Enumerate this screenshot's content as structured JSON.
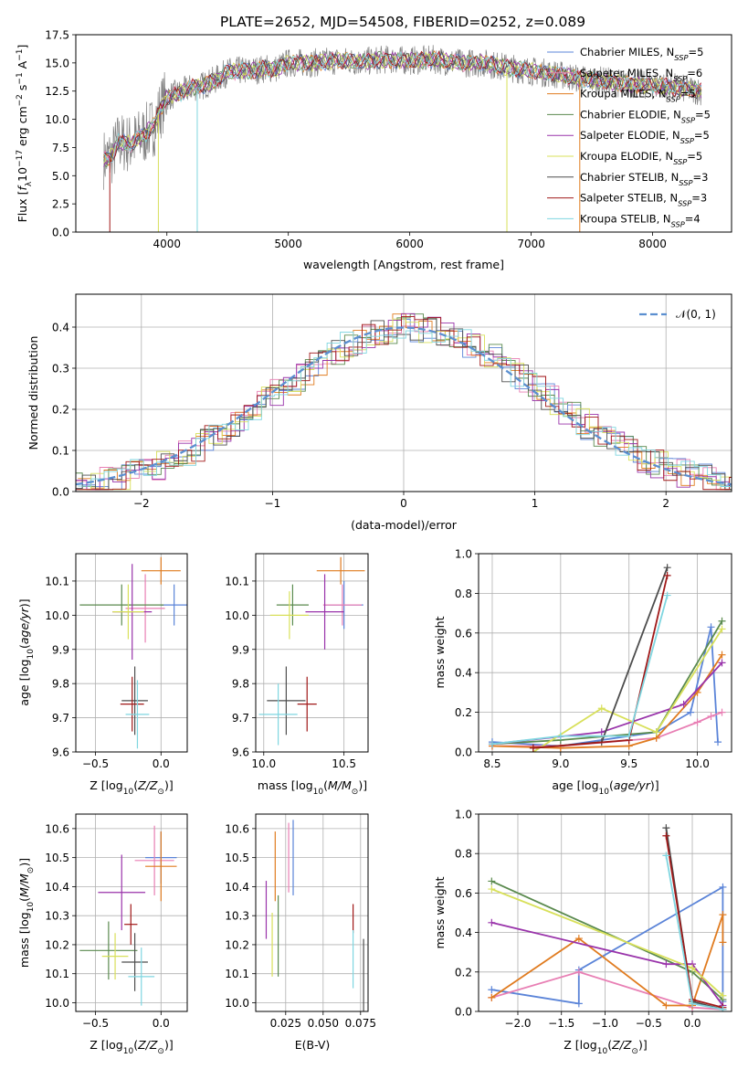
{
  "figure": {
    "title": "PLATE=2652, MJD=54508, FIBERID=0252, z=0.089",
    "colors": {
      "chabrier_miles": "#5b84d8",
      "salpeter_miles": "#e87fb4",
      "kroupa_miles": "#e07b1f",
      "chabrier_elodie": "#5a8a4e",
      "salpeter_elodie": "#9933aa",
      "kroupa_elodie": "#d8e05a",
      "chabrier_stelib": "#4d4d4d",
      "salpeter_stelib": "#a01818",
      "kroupa_stelib": "#7fd6e0",
      "spectrum": "#808080",
      "gaussian": "#5b8fd0"
    }
  },
  "chart_data": [
    {
      "type": "line",
      "id": "spectrum",
      "title": "PLATE=2652, MJD=54508, FIBERID=0252, z=0.089",
      "xlabel": "wavelength [Angstrom, rest frame]",
      "ylabel": "Flux [f_λ 10^-17 erg cm^-2 s^-1 A^-1]",
      "xlim": [
        3250,
        8650
      ],
      "ylim": [
        0,
        17.5
      ],
      "xticks": [
        4000,
        5000,
        6000,
        7000,
        8000
      ],
      "yticks": [
        0.0,
        2.5,
        5.0,
        7.5,
        10.0,
        12.5,
        15.0,
        17.5
      ],
      "legend_position": "top-right",
      "legend": [
        {
          "label": "Chabrier MILES, N_SSP=5",
          "color_key": "chabrier_miles"
        },
        {
          "label": "Salpeter MILES, N_SSP=6",
          "color_key": "salpeter_miles"
        },
        {
          "label": "Kroupa MILES, N_SSP=5",
          "color_key": "kroupa_miles"
        },
        {
          "label": "Chabrier ELODIE, N_SSP=5",
          "color_key": "chabrier_elodie"
        },
        {
          "label": "Salpeter ELODIE, N_SSP=5",
          "color_key": "salpeter_elodie"
        },
        {
          "label": "Kroupa ELODIE, N_SSP=5",
          "color_key": "kroupa_elodie"
        },
        {
          "label": "Chabrier STELIB, N_SSP=3",
          "color_key": "chabrier_stelib"
        },
        {
          "label": "Salpeter STELIB, N_SSP=3",
          "color_key": "salpeter_stelib"
        },
        {
          "label": "Kroupa STELIB, N_SSP=4",
          "color_key": "kroupa_stelib"
        }
      ],
      "continuum": {
        "x": [
          3500,
          3550,
          3600,
          3700,
          3800,
          3900,
          3950,
          4000,
          4100,
          4200,
          4300,
          4400,
          4500,
          4600,
          4700,
          4800,
          4900,
          5000,
          5200,
          5400,
          5600,
          5800,
          6000,
          6200,
          6400,
          6600,
          6800,
          7000,
          7200,
          7400,
          7600,
          7800,
          8000,
          8200,
          8400
        ],
        "y": [
          6.5,
          6.8,
          8.0,
          7.8,
          8.5,
          9.5,
          11.0,
          12.0,
          12.3,
          12.8,
          13.0,
          13.5,
          14.2,
          14.3,
          14.3,
          14.5,
          14.5,
          15.0,
          15.0,
          15.2,
          15.1,
          15.3,
          15.2,
          15.3,
          15.0,
          15.0,
          14.6,
          14.3,
          14.0,
          13.6,
          13.4,
          13.1,
          13.0,
          12.8,
          12.5
        ]
      },
      "spikes": [
        {
          "x": 3530,
          "color_key": "salpeter_stelib",
          "y": 0
        },
        {
          "x": 3930,
          "color_key": "kroupa_elodie",
          "y": 0
        },
        {
          "x": 4250,
          "color_key": "kroupa_stelib",
          "y": 0
        },
        {
          "x": 6800,
          "color_key": "kroupa_elodie",
          "y": 0
        },
        {
          "x": 7400,
          "color_key": "kroupa_miles",
          "y": 0
        }
      ]
    },
    {
      "type": "step",
      "id": "residuals",
      "xlabel": "(data-model)/error",
      "ylabel": "Normed distribution",
      "xlim": [
        -2.5,
        2.5
      ],
      "ylim": [
        0,
        0.48
      ],
      "xticks": [
        -2,
        -1,
        0,
        1,
        2
      ],
      "yticks": [
        0.0,
        0.1,
        0.2,
        0.3,
        0.4
      ],
      "legend_position": "top-right",
      "legend_label": "𝒩(0, 1)",
      "gaussian": {
        "mu": 0,
        "sigma": 1
      }
    },
    {
      "type": "errorbar",
      "id": "age-vs-z",
      "xlabel": "Z [log10(Z/Z_⊙)]",
      "ylabel": "age  [log10(age/yr)]",
      "xlim": [
        -0.65,
        0.2
      ],
      "ylim": [
        9.6,
        10.18
      ],
      "xticks": [
        -0.5,
        0.0
      ],
      "yticks": [
        9.6,
        9.7,
        9.8,
        9.9,
        10.0,
        10.1
      ],
      "points": [
        {
          "color_key": "kroupa_miles",
          "x": 0.0,
          "xerr": 0.15,
          "y": 10.13,
          "yerr": 0.04
        },
        {
          "color_key": "chabrier_miles",
          "x": 0.1,
          "xerr": 0.1,
          "y": 10.03,
          "yerr": 0.06
        },
        {
          "color_key": "salpeter_miles",
          "x": -0.12,
          "xerr": 0.15,
          "y": 10.02,
          "yerr": 0.1
        },
        {
          "color_key": "chabrier_elodie",
          "x": -0.3,
          "xerr": 0.32,
          "y": 10.03,
          "yerr": 0.06
        },
        {
          "color_key": "salpeter_elodie",
          "x": -0.22,
          "xerr": 0.15,
          "y": 10.01,
          "yerr": 0.14
        },
        {
          "color_key": "kroupa_elodie",
          "x": -0.25,
          "xerr": 0.12,
          "y": 10.01,
          "yerr": 0.08
        },
        {
          "color_key": "chabrier_stelib",
          "x": -0.2,
          "xerr": 0.1,
          "y": 9.75,
          "yerr": 0.1
        },
        {
          "color_key": "salpeter_stelib",
          "x": -0.22,
          "xerr": 0.09,
          "y": 9.74,
          "yerr": 0.08
        },
        {
          "color_key": "kroupa_stelib",
          "x": -0.18,
          "xerr": 0.09,
          "y": 9.71,
          "yerr": 0.1
        }
      ]
    },
    {
      "type": "errorbar",
      "id": "age-vs-mass",
      "xlabel": "mass [log10(M/M_⊙)]",
      "ylabel": "",
      "xlim": [
        9.95,
        10.65
      ],
      "ylim": [
        9.6,
        10.18
      ],
      "xticks": [
        10.0,
        10.5
      ],
      "yticks": [
        9.6,
        9.7,
        9.8,
        9.9,
        10.0,
        10.1
      ],
      "points": [
        {
          "color_key": "kroupa_miles",
          "x": 10.48,
          "xerr": 0.15,
          "y": 10.13,
          "yerr": 0.04
        },
        {
          "color_key": "chabrier_miles",
          "x": 10.5,
          "xerr": 0.12,
          "y": 10.03,
          "yerr": 0.07
        },
        {
          "color_key": "salpeter_miles",
          "x": 10.49,
          "xerr": 0.12,
          "y": 10.03,
          "yerr": 0.06
        },
        {
          "color_key": "chabrier_elodie",
          "x": 10.18,
          "xerr": 0.1,
          "y": 10.03,
          "yerr": 0.06
        },
        {
          "color_key": "salpeter_elodie",
          "x": 10.38,
          "xerr": 0.12,
          "y": 10.01,
          "yerr": 0.11
        },
        {
          "color_key": "kroupa_elodie",
          "x": 10.16,
          "xerr": 0.12,
          "y": 10.0,
          "yerr": 0.07
        },
        {
          "color_key": "chabrier_stelib",
          "x": 10.14,
          "xerr": 0.12,
          "y": 9.75,
          "yerr": 0.1
        },
        {
          "color_key": "salpeter_stelib",
          "x": 10.27,
          "xerr": 0.06,
          "y": 9.74,
          "yerr": 0.08
        },
        {
          "color_key": "kroupa_stelib",
          "x": 10.09,
          "xerr": 0.12,
          "y": 9.71,
          "yerr": 0.09
        }
      ]
    },
    {
      "type": "line",
      "id": "weight-vs-age",
      "xlabel": "age  [log10(age/yr)]",
      "ylabel": "mass weight",
      "xlim": [
        8.4,
        10.25
      ],
      "ylim": [
        0,
        1.0
      ],
      "xticks": [
        8.5,
        9.0,
        9.5,
        10.0
      ],
      "yticks": [
        0.0,
        0.2,
        0.4,
        0.6,
        0.8,
        1.0
      ],
      "series": [
        {
          "color_key": "chabrier_miles",
          "x": [
            8.5,
            9.0,
            9.7,
            9.95,
            10.1,
            10.15
          ],
          "y": [
            0.05,
            0.03,
            0.1,
            0.2,
            0.63,
            0.05
          ]
        },
        {
          "color_key": "salpeter_miles",
          "x": [
            8.5,
            9.0,
            9.7,
            10.0,
            10.1,
            10.18
          ],
          "y": [
            0.03,
            0.03,
            0.07,
            0.15,
            0.18,
            0.2
          ]
        },
        {
          "color_key": "kroupa_miles",
          "x": [
            8.5,
            9.0,
            9.5,
            9.7,
            10.0,
            10.18
          ],
          "y": [
            0.03,
            0.02,
            0.03,
            0.07,
            0.3,
            0.49
          ]
        },
        {
          "color_key": "chabrier_elodie",
          "x": [
            8.5,
            9.0,
            9.7,
            10.18
          ],
          "y": [
            0.04,
            0.06,
            0.1,
            0.66
          ]
        },
        {
          "color_key": "salpeter_elodie",
          "x": [
            8.5,
            9.3,
            9.9,
            10.18
          ],
          "y": [
            0.04,
            0.1,
            0.24,
            0.45
          ]
        },
        {
          "color_key": "kroupa_elodie",
          "x": [
            8.8,
            9.3,
            9.7,
            10.18
          ],
          "y": [
            0.0,
            0.22,
            0.1,
            0.62
          ]
        },
        {
          "color_key": "chabrier_stelib",
          "x": [
            8.8,
            9.3,
            9.78
          ],
          "y": [
            0.02,
            0.05,
            0.93
          ]
        },
        {
          "color_key": "salpeter_stelib",
          "x": [
            8.8,
            9.5,
            9.78
          ],
          "y": [
            0.02,
            0.06,
            0.89
          ]
        },
        {
          "color_key": "kroupa_stelib",
          "x": [
            8.5,
            9.0,
            9.5,
            9.78
          ],
          "y": [
            0.04,
            0.08,
            0.08,
            0.79
          ]
        }
      ]
    },
    {
      "type": "errorbar",
      "id": "mass-vs-z",
      "xlabel": "Z [log10(Z/Z_⊙)]",
      "ylabel": "mass [log10(M/M_⊙)]",
      "xlim": [
        -0.65,
        0.2
      ],
      "ylim": [
        9.97,
        10.65
      ],
      "xticks": [
        -0.5,
        0.0
      ],
      "yticks": [
        10.0,
        10.1,
        10.2,
        10.3,
        10.4,
        10.5,
        10.6
      ],
      "points": [
        {
          "color_key": "chabrier_miles",
          "x": 0.0,
          "xerr": 0.12,
          "y": 10.5,
          "yerr": 0.09
        },
        {
          "color_key": "salpeter_miles",
          "x": -0.05,
          "xerr": 0.15,
          "y": 10.49,
          "yerr": 0.12
        },
        {
          "color_key": "kroupa_miles",
          "x": 0.0,
          "xerr": 0.12,
          "y": 10.47,
          "yerr": 0.12
        },
        {
          "color_key": "salpeter_elodie",
          "x": -0.3,
          "xerr": 0.18,
          "y": 10.38,
          "yerr": 0.13
        },
        {
          "color_key": "salpeter_stelib",
          "x": -0.23,
          "xerr": 0.05,
          "y": 10.27,
          "yerr": 0.07
        },
        {
          "color_key": "chabrier_elodie",
          "x": -0.4,
          "xerr": 0.22,
          "y": 10.18,
          "yerr": 0.1
        },
        {
          "color_key": "kroupa_elodie",
          "x": -0.35,
          "xerr": 0.1,
          "y": 10.16,
          "yerr": 0.08
        },
        {
          "color_key": "chabrier_stelib",
          "x": -0.2,
          "xerr": 0.1,
          "y": 10.14,
          "yerr": 0.1
        },
        {
          "color_key": "kroupa_stelib",
          "x": -0.15,
          "xerr": 0.1,
          "y": 10.09,
          "yerr": 0.1
        }
      ]
    },
    {
      "type": "errorbar",
      "id": "mass-vs-ebv",
      "xlabel": "E(B-V)",
      "ylabel": "",
      "xlim": [
        0.005,
        0.08
      ],
      "ylim": [
        9.97,
        10.65
      ],
      "xticks": [
        0.025,
        0.05,
        0.075
      ],
      "yticks": [
        10.0,
        10.1,
        10.2,
        10.3,
        10.4,
        10.5,
        10.6
      ],
      "points": [
        {
          "color_key": "chabrier_miles",
          "x": 0.03,
          "xerr": 0.0,
          "y": 10.5,
          "yerr": 0.13
        },
        {
          "color_key": "salpeter_miles",
          "x": 0.027,
          "xerr": 0.0,
          "y": 10.5,
          "yerr": 0.12
        },
        {
          "color_key": "kroupa_miles",
          "x": 0.018,
          "xerr": 0.0,
          "y": 10.47,
          "yerr": 0.12
        },
        {
          "color_key": "salpeter_elodie",
          "x": 0.012,
          "xerr": 0.0,
          "y": 10.32,
          "yerr": 0.1
        },
        {
          "color_key": "chabrier_elodie",
          "x": 0.02,
          "xerr": 0.0,
          "y": 10.23,
          "yerr": 0.14
        },
        {
          "color_key": "kroupa_elodie",
          "x": 0.016,
          "xerr": 0.0,
          "y": 10.2,
          "yerr": 0.11
        },
        {
          "color_key": "salpeter_stelib",
          "x": 0.07,
          "xerr": 0.0,
          "y": 10.29,
          "yerr": 0.05
        },
        {
          "color_key": "kroupa_stelib",
          "x": 0.07,
          "xerr": 0.0,
          "y": 10.15,
          "yerr": 0.1
        },
        {
          "color_key": "chabrier_stelib",
          "x": 0.077,
          "xerr": 0.0,
          "y": 10.07,
          "yerr": 0.15
        }
      ]
    },
    {
      "type": "line",
      "id": "weight-vs-z",
      "xlabel": "Z [log10(Z/Z_⊙)]",
      "ylabel": "mass weight",
      "xlim": [
        -2.45,
        0.45
      ],
      "ylim": [
        0,
        1.0
      ],
      "xticks": [
        -2.0,
        -1.5,
        -1.0,
        -0.5,
        0.0
      ],
      "yticks": [
        0.0,
        0.2,
        0.4,
        0.6,
        0.8,
        1.0
      ],
      "series": [
        {
          "color_key": "chabrier_miles",
          "x": [
            -2.3,
            -1.3,
            -1.3,
            0.35,
            0.35
          ],
          "y": [
            0.11,
            0.04,
            0.21,
            0.63,
            0.05
          ]
        },
        {
          "color_key": "salpeter_miles",
          "x": [
            -2.3,
            -1.3,
            0.0,
            0.35
          ],
          "y": [
            0.07,
            0.2,
            0.02,
            0.01
          ]
        },
        {
          "color_key": "kroupa_miles",
          "x": [
            -2.3,
            -1.3,
            -0.3,
            0.0,
            0.35,
            0.35
          ],
          "y": [
            0.07,
            0.37,
            0.03,
            0.03,
            0.49,
            0.35
          ]
        },
        {
          "color_key": "chabrier_elodie",
          "x": [
            -2.3,
            0.0,
            0.35
          ],
          "y": [
            0.66,
            0.2,
            0.06
          ]
        },
        {
          "color_key": "salpeter_elodie",
          "x": [
            -2.3,
            -0.3,
            0.0,
            0.35
          ],
          "y": [
            0.45,
            0.24,
            0.24,
            0.03
          ]
        },
        {
          "color_key": "kroupa_elodie",
          "x": [
            -2.3,
            0.0,
            0.35
          ],
          "y": [
            0.62,
            0.22,
            0.08
          ]
        },
        {
          "color_key": "chabrier_stelib",
          "x": [
            -0.3,
            0.0,
            0.35
          ],
          "y": [
            0.93,
            0.05,
            0.01
          ]
        },
        {
          "color_key": "salpeter_stelib",
          "x": [
            -0.3,
            0.0,
            0.35
          ],
          "y": [
            0.89,
            0.06,
            0.02
          ]
        },
        {
          "color_key": "kroupa_stelib",
          "x": [
            -0.3,
            0.0,
            0.35
          ],
          "y": [
            0.79,
            0.04,
            0.01
          ]
        }
      ]
    }
  ]
}
